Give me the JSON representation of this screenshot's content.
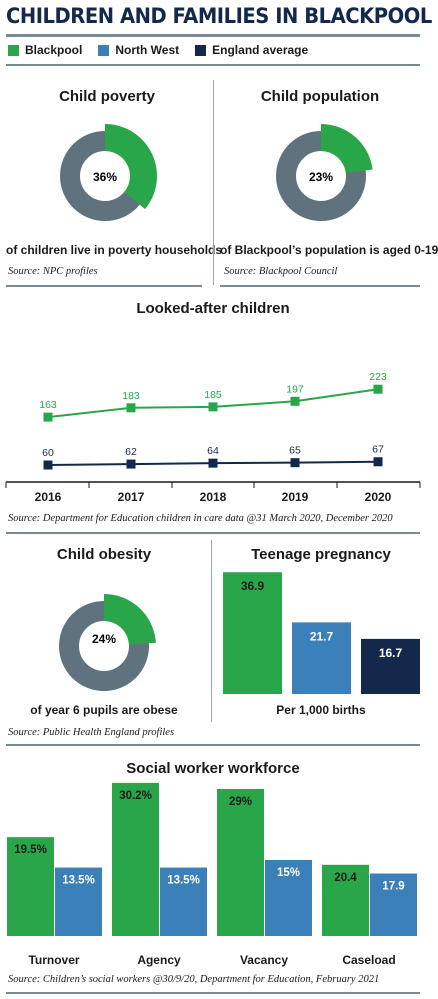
{
  "page_title": "CHILDREN AND FAMILIES IN BLACKPOOL",
  "legend": [
    {
      "label": "Blackpool",
      "color": "#2aa64a"
    },
    {
      "label": "North West",
      "color": "#3b80b8"
    },
    {
      "label": "England average",
      "color": "#13294b"
    }
  ],
  "colors": {
    "blackpool": "#2aa64a",
    "north_west": "#3b80b8",
    "england": "#13294b",
    "ring": "#5f727d"
  },
  "poverty": {
    "title": "Child poverty",
    "value_label": "36%",
    "caption": "of children live in poverty households",
    "source": "Source: NPC profiles"
  },
  "population": {
    "title": "Child population",
    "value_label": "23%",
    "caption": "of Blackpool’s population is aged 0-19",
    "source": "Source: Blackpool Council"
  },
  "looked_after": {
    "title": "Looked-after children",
    "source": "Source: Department for Education children in care data @31 March 2020, December 2020"
  },
  "obesity": {
    "title": "Child obesity",
    "value_label": "24%",
    "caption": "of year 6 pupils are obese",
    "source": "Source: Public Health England profiles"
  },
  "pregnancy": {
    "title": "Teenage pregnancy",
    "caption": "Per 1,000 births",
    "labels": [
      "36.9",
      "21.7",
      "16.7"
    ]
  },
  "workforce": {
    "title": "Social worker workforce",
    "source": "Source: Children’s social workers @30/9/20, Department for Education, February 2021",
    "labels": {
      "blackpool": [
        "19.5%",
        "30.2%",
        "29%",
        "20.4"
      ],
      "north_west": [
        "13.5%",
        "13.5%",
        "15%",
        "17.9"
      ]
    }
  },
  "chart_data": [
    {
      "type": "pie",
      "title": "Child poverty",
      "categories": [
        "Blackpool",
        "Other"
      ],
      "values": [
        36,
        64
      ]
    },
    {
      "type": "pie",
      "title": "Child population",
      "categories": [
        "Blackpool",
        "Other"
      ],
      "values": [
        23,
        77
      ]
    },
    {
      "type": "line",
      "title": "Looked-after children",
      "x": [
        2016,
        2017,
        2018,
        2019,
        2020
      ],
      "series": [
        {
          "name": "Blackpool",
          "values": [
            163,
            183,
            185,
            197,
            223
          ]
        },
        {
          "name": "England average",
          "values": [
            60,
            62,
            64,
            65,
            67
          ]
        }
      ]
    },
    {
      "type": "pie",
      "title": "Child obesity",
      "categories": [
        "Blackpool",
        "Other"
      ],
      "values": [
        24,
        76
      ]
    },
    {
      "type": "bar",
      "title": "Teenage pregnancy",
      "xlabel": "Per 1,000 births",
      "categories": [
        "Blackpool",
        "North West",
        "England average"
      ],
      "values": [
        36.9,
        21.7,
        16.7
      ]
    },
    {
      "type": "bar",
      "title": "Social worker workforce",
      "categories": [
        "Turnover",
        "Agency",
        "Vacancy",
        "Caseload"
      ],
      "series": [
        {
          "name": "Blackpool",
          "values": [
            19.5,
            30.2,
            29,
            20.4
          ]
        },
        {
          "name": "North West",
          "values": [
            13.5,
            13.5,
            15,
            17.9
          ]
        }
      ]
    }
  ]
}
